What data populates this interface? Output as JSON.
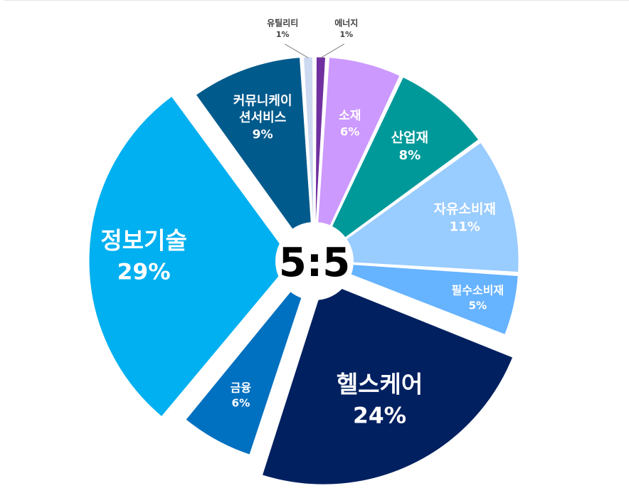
{
  "chart_data": {
    "type": "pie",
    "title": "",
    "center_label": "5:5",
    "slices": [
      {
        "name": "에너지",
        "value": 1,
        "label": "1%",
        "color": "#7030a0",
        "label_color": "#404040",
        "exploded": false
      },
      {
        "name": "소재",
        "value": 6,
        "label": "6%",
        "color": "#cc99ff",
        "label_color": "#ffffff",
        "exploded": false
      },
      {
        "name": "산업재",
        "value": 8,
        "label": "8%",
        "color": "#009999",
        "label_color": "#ffffff",
        "exploded": false
      },
      {
        "name": "자유소비재",
        "value": 11,
        "label": "11%",
        "color": "#99ccff",
        "label_color": "#ffffff",
        "exploded": false
      },
      {
        "name": "필수소비재",
        "value": 5,
        "label": "5%",
        "color": "#66b3ff",
        "label_color": "#ffffff",
        "exploded": false
      },
      {
        "name": "헬스케어",
        "value": 24,
        "label": "24%",
        "color": "#002060",
        "label_color": "#ffffff",
        "exploded": true
      },
      {
        "name": "금융",
        "value": 6,
        "label": "6%",
        "color": "#0070c0",
        "label_color": "#ffffff",
        "exploded": false
      },
      {
        "name": "정보기술",
        "value": 29,
        "label": "29%",
        "color": "#00b0f0",
        "label_color": "#ffffff",
        "exploded": true
      },
      {
        "name": "커뮤니케이션서비스",
        "value": 9,
        "label": "9%",
        "color": "#005a8c",
        "label_color": "#ffffff",
        "exploded": false
      },
      {
        "name": "유틸리티",
        "value": 1,
        "label": "1%",
        "color": "#ccd9f0",
        "label_color": "#404040",
        "exploded": false
      }
    ]
  }
}
